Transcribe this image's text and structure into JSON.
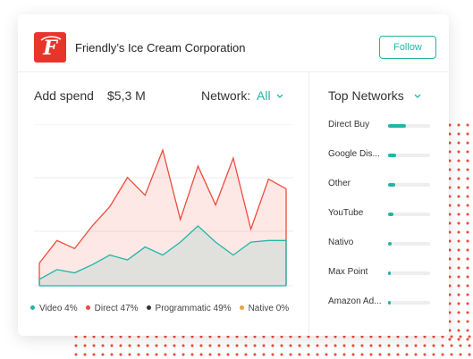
{
  "header": {
    "company": "Friendly’s Ice Cream Corporation",
    "follow_label": "Follow",
    "logo_letter": "F"
  },
  "summary": {
    "spend_label": "Add spend",
    "spend_value": "$5,3 M",
    "network_label": "Network:",
    "network_value": "All"
  },
  "chart_data": {
    "type": "area",
    "x": [
      0,
      1,
      2,
      3,
      4,
      5,
      6,
      7,
      8,
      9,
      10,
      11,
      12,
      13,
      14
    ],
    "series": [
      {
        "name": "Video",
        "values": [
          4,
          10,
          8,
          13,
          19,
          16,
          24,
          19,
          27,
          37,
          27,
          19,
          27,
          28,
          28
        ]
      },
      {
        "name": "Direct",
        "values": [
          14,
          28,
          23,
          37,
          49,
          67,
          56,
          84,
          41,
          74,
          50,
          79,
          35,
          66,
          60
        ]
      }
    ],
    "ylim": [
      0,
      100
    ],
    "legend": [
      {
        "label": "Video 4%",
        "color": "#21b5a6"
      },
      {
        "label": "Direct 47%",
        "color": "#ef4b3a"
      },
      {
        "label": "Programmatic 49%",
        "color": "#333333"
      },
      {
        "label": "Native 0%",
        "color": "#e8a23a"
      }
    ],
    "colors": {
      "video": "#21b5a6",
      "direct": "#ef4b3a",
      "grid": "#eeeeee"
    },
    "grid": true
  },
  "top_networks": {
    "title": "Top Networks",
    "items": [
      {
        "name": "Direct Buy",
        "value": 0.42
      },
      {
        "name": "Google Dis...",
        "value": 0.2
      },
      {
        "name": "Other",
        "value": 0.18
      },
      {
        "name": "YouTube",
        "value": 0.12
      },
      {
        "name": "Nativo",
        "value": 0.09
      },
      {
        "name": "Max Point",
        "value": 0.06
      },
      {
        "name": "Amazon Ad...",
        "value": 0.04
      }
    ]
  }
}
